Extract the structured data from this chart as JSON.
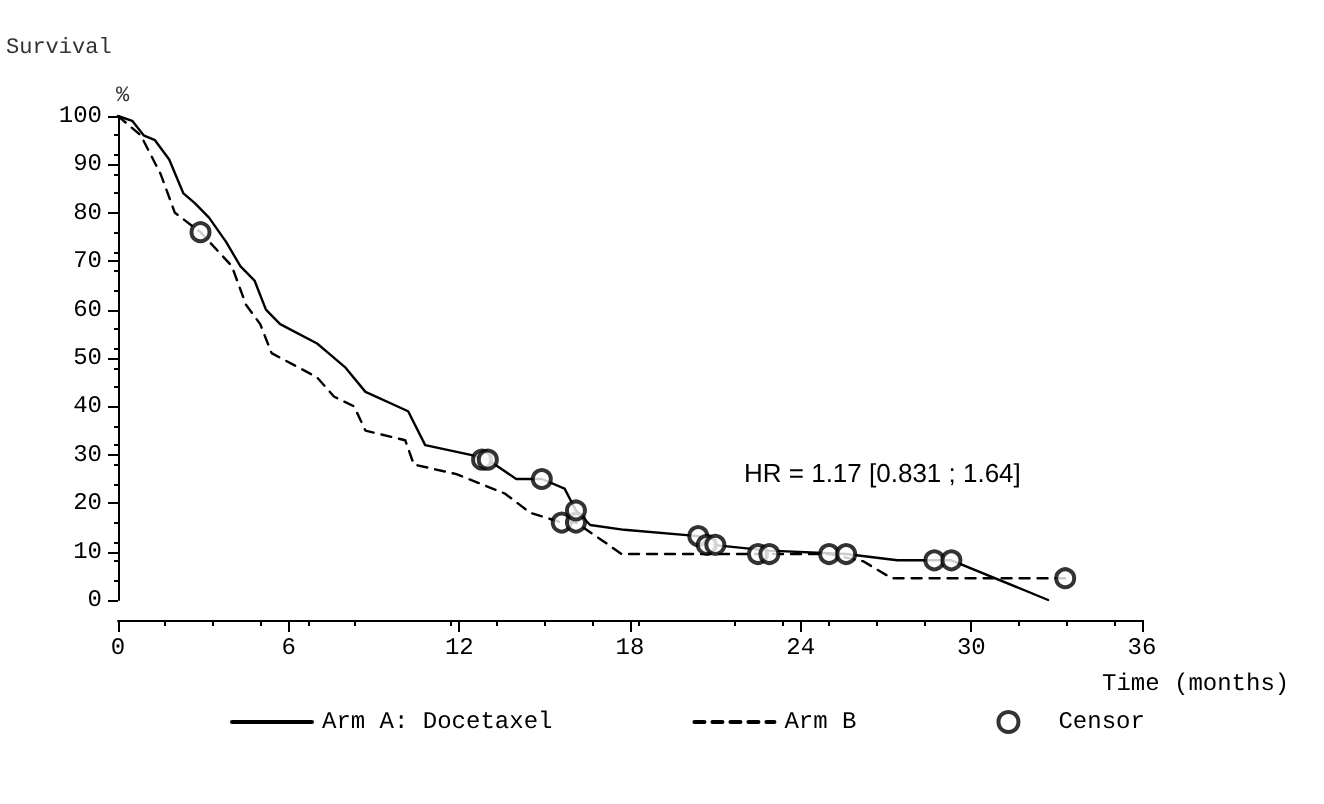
{
  "chart_data": {
    "type": "line",
    "ylabel": "Survival",
    "xlabel": "Time (months)",
    "annotations": [
      "%",
      "HR = 1.17 [0.831 ; 1.64]"
    ],
    "xlim": [
      0,
      36
    ],
    "xticks": [
      0,
      6,
      12,
      18,
      24,
      30,
      36
    ],
    "ylim": [
      0,
      100
    ],
    "yticks": [
      0,
      10,
      20,
      30,
      40,
      50,
      60,
      70,
      80,
      90,
      100
    ],
    "grid": false,
    "legend": "bottom",
    "marker": "none",
    "series": [
      {
        "name": "Arm A: Docetaxel",
        "color": "#000000",
        "line_style": "solid",
        "x": [
          0,
          0.5,
          0.9,
          1.3,
          1.8,
          2.3,
          2.7,
          3.2,
          3.8,
          4.3,
          4.8,
          5.2,
          5.7,
          7.0,
          7.4,
          8.0,
          8.7,
          10.2,
          10.8,
          12.4,
          13.0,
          14.0,
          14.9,
          15.7,
          16.1,
          16.6,
          17.8,
          20.4,
          20.9,
          22.9,
          25.6,
          27.4,
          29.3,
          32.7
        ],
        "values": [
          100,
          99,
          96,
          95,
          91,
          84,
          82,
          79,
          74,
          69,
          66,
          60,
          57,
          53,
          51,
          48,
          43,
          39,
          32,
          30,
          29,
          25,
          25,
          23,
          18.5,
          15.5,
          14.5,
          13.2,
          11.4,
          10.2,
          9.5,
          8.2,
          8.2,
          0
        ]
      },
      {
        "name": "Arm B",
        "color": "#000000",
        "line_style": "dashed",
        "x": [
          0,
          0.8,
          1.5,
          2.0,
          2.9,
          4.0,
          4.5,
          5.0,
          5.4,
          7.0,
          7.6,
          8.3,
          8.7,
          10.1,
          10.4,
          11.9,
          13.6,
          14.5,
          15.6,
          16.1,
          17.1,
          17.7,
          25.0,
          26.2,
          27.2,
          33.3
        ],
        "values": [
          100,
          96,
          88,
          80,
          76,
          69,
          61,
          57,
          51,
          46,
          42,
          40,
          35,
          33,
          28,
          26,
          22,
          18,
          16,
          16,
          12,
          9.5,
          9.5,
          8,
          4.5,
          4.5
        ]
      },
      {
        "name": "Censor",
        "type": "scatter",
        "color": "#000000",
        "marker": "circle",
        "x": [
          2.9,
          12.8,
          13.0,
          14.9,
          15.6,
          16.1,
          16.1,
          20.4,
          20.7,
          21.0,
          22.5,
          22.9,
          25.0,
          25.6,
          28.7,
          29.3,
          33.3
        ],
        "values": [
          76,
          29,
          29,
          25,
          16,
          16,
          18.5,
          13.2,
          11.4,
          11.4,
          9.5,
          9.5,
          9.5,
          9.5,
          8.2,
          8.2,
          4.5
        ]
      }
    ]
  }
}
